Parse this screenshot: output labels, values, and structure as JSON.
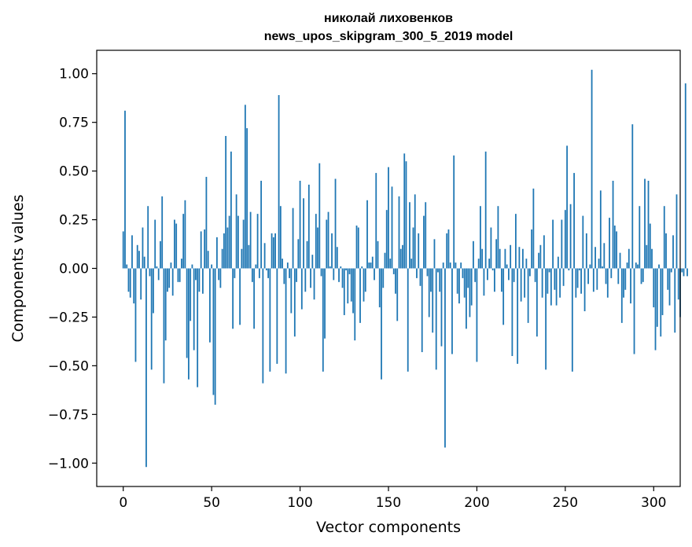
{
  "chart_data": {
    "type": "bar",
    "title_line1": "николай лиховенков",
    "title_line2": "news_upos_skipgram_300_5_2019 model",
    "xlabel": "Vector components",
    "ylabel": "Components values",
    "xlim": [
      -15,
      315
    ],
    "ylim": [
      -1.12,
      1.12
    ],
    "xticks": [
      0,
      50,
      100,
      150,
      200,
      250,
      300
    ],
    "yticks": [
      -1.0,
      -0.75,
      -0.5,
      -0.25,
      0.0,
      0.25,
      0.5,
      0.75,
      1.0
    ],
    "xtick_labels": [
      "0",
      "50",
      "100",
      "150",
      "200",
      "250",
      "300"
    ],
    "ytick_labels": [
      "−1.00",
      "−0.75",
      "−0.50",
      "−0.25",
      "0.00",
      "0.25",
      "0.50",
      "0.75",
      "1.00"
    ],
    "color": "#1f77b4",
    "grid": false,
    "values": [
      0.19,
      0.81,
      0.02,
      -0.12,
      -0.15,
      0.17,
      -0.18,
      -0.48,
      0.12,
      0.09,
      -0.16,
      0.21,
      0.06,
      -1.02,
      0.32,
      -0.04,
      -0.52,
      -0.23,
      0.25,
      0.01,
      -0.06,
      0.14,
      0.37,
      -0.59,
      -0.37,
      -0.12,
      -0.1,
      0.03,
      -0.14,
      0.25,
      0.23,
      -0.07,
      -0.07,
      0.05,
      0.28,
      0.35,
      -0.46,
      -0.57,
      -0.27,
      0.02,
      -0.42,
      -0.06,
      -0.61,
      -0.12,
      0.19,
      -0.13,
      0.2,
      0.47,
      0.09,
      -0.38,
      0.02,
      -0.65,
      -0.7,
      0.16,
      -0.06,
      -0.1,
      0.1,
      0.18,
      0.68,
      0.21,
      0.27,
      0.6,
      -0.31,
      -0.05,
      0.38,
      0.27,
      -0.29,
      0.1,
      0.25,
      0.84,
      0.72,
      0.12,
      0.29,
      -0.07,
      -0.31,
      0.02,
      0.28,
      -0.05,
      0.45,
      -0.59,
      0.13,
      -0.01,
      -0.05,
      -0.53,
      0.18,
      0.16,
      0.18,
      -0.49,
      0.89,
      0.32,
      0.05,
      -0.08,
      -0.54,
      0.03,
      -0.05,
      -0.23,
      0.31,
      -0.35,
      -0.07,
      0.15,
      0.45,
      -0.21,
      0.36,
      -0.12,
      0.14,
      0.43,
      -0.1,
      0.07,
      -0.16,
      0.28,
      0.21,
      0.54,
      -0.04,
      -0.53,
      -0.36,
      0.25,
      0.29,
      0.01,
      0.18,
      -0.06,
      0.46,
      0.11,
      -0.07,
      0.01,
      -0.1,
      -0.24,
      -0.01,
      -0.18,
      -0.03,
      -0.17,
      -0.23,
      -0.37,
      0.22,
      0.21,
      -0.28,
      0.01,
      -0.17,
      -0.12,
      0.35,
      0.03,
      0.03,
      0.06,
      -0.06,
      0.49,
      0.14,
      -0.2,
      -0.57,
      -0.1,
      0.08,
      0.3,
      0.52,
      0.05,
      0.42,
      -0.03,
      -0.13,
      -0.27,
      0.37,
      0.1,
      0.12,
      0.59,
      0.55,
      -0.53,
      0.34,
      0.05,
      0.21,
      0.38,
      -0.05,
      0.18,
      -0.09,
      -0.43,
      0.27,
      0.34,
      -0.04,
      -0.25,
      -0.12,
      -0.33,
      0.15,
      -0.52,
      -0.02,
      -0.12,
      -0.4,
      0.03,
      -0.92,
      0.18,
      0.2,
      0.03,
      -0.44,
      0.58,
      0.03,
      -0.13,
      -0.18,
      0.03,
      -0.05,
      -0.15,
      -0.31,
      -0.1,
      -0.25,
      -0.19,
      0.14,
      -0.07,
      -0.48,
      0.05,
      0.32,
      0.1,
      -0.14,
      0.6,
      -0.06,
      0.05,
      0.21,
      -0.01,
      -0.12,
      0.15,
      0.32,
      0.1,
      -0.12,
      -0.29,
      0.1,
      0.02,
      -0.06,
      0.12,
      -0.45,
      -0.07,
      0.28,
      -0.49,
      0.11,
      -0.17,
      0.1,
      -0.15,
      0.05,
      -0.28,
      -0.04,
      0.2,
      0.41,
      -0.07,
      -0.35,
      0.08,
      0.12,
      -0.15,
      0.17,
      -0.52,
      -0.13,
      -0.02,
      -0.19,
      0.25,
      -0.11,
      -0.19,
      0.06,
      -0.15,
      0.25,
      -0.09,
      0.3,
      0.63,
      -0.01,
      0.33,
      -0.53,
      0.49,
      -0.15,
      -0.1,
      -0.01,
      -0.13,
      0.27,
      -0.22,
      0.18,
      -0.08,
      0.02,
      1.02,
      -0.12,
      0.11,
      -0.11,
      0.05,
      0.4,
      0.01,
      0.13,
      -0.08,
      -0.15,
      0.26,
      -0.05,
      0.45,
      0.22,
      0.19,
      -0.08,
      0.08,
      -0.28,
      -0.15,
      -0.11,
      0.03,
      0.1,
      -0.18,
      0.74,
      -0.44,
      0.03,
      0.02,
      0.32,
      -0.08,
      -0.07,
      0.46,
      0.12,
      0.45,
      0.23,
      0.1,
      -0.2,
      -0.42,
      -0.3,
      0.02,
      -0.35,
      -0.24,
      0.32,
      0.18,
      -0.11,
      -0.19,
      -0.02,
      0.17,
      -0.33,
      0.38,
      -0.16,
      -0.25,
      -0.02,
      -0.04,
      0.95,
      -0.04
    ]
  }
}
